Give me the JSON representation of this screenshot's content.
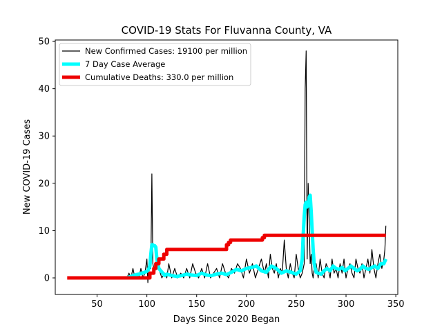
{
  "chart_data": {
    "type": "line",
    "title": "COVID-19 Stats For Fluvanna County, VA",
    "xlabel": "Days Since 2020 Began",
    "ylabel": "New COVID-19 Cases",
    "xlim": [
      8,
      352
    ],
    "ylim": [
      -3.5,
      50.3
    ],
    "xticks": [
      50,
      100,
      150,
      200,
      250,
      300,
      350
    ],
    "yticks": [
      0,
      10,
      20,
      30,
      40,
      50
    ],
    "grid": false,
    "legend_position": "top-left",
    "series": [
      {
        "name": "New Confirmed Cases: 19100 per million",
        "color": "#000000",
        "x": [
          80,
          82,
          84,
          86,
          88,
          90,
          92,
          94,
          96,
          98,
          100,
          101,
          102,
          103,
          104,
          105,
          106,
          108,
          110,
          112,
          115,
          118,
          120,
          122,
          125,
          128,
          131,
          134,
          137,
          140,
          143,
          146,
          149,
          152,
          155,
          158,
          161,
          164,
          167,
          170,
          173,
          176,
          179,
          182,
          185,
          188,
          191,
          194,
          197,
          200,
          203,
          206,
          209,
          212,
          215,
          218,
          220,
          222,
          224,
          226,
          228,
          230,
          232,
          234,
          236,
          238,
          240,
          242,
          244,
          246,
          248,
          250,
          252,
          254,
          256,
          258,
          259,
          260,
          261,
          262,
          263,
          264,
          265,
          266,
          267,
          268,
          270,
          272,
          274,
          276,
          278,
          280,
          282,
          284,
          286,
          288,
          290,
          292,
          294,
          296,
          298,
          300,
          302,
          304,
          306,
          308,
          310,
          312,
          314,
          316,
          318,
          320,
          322,
          324,
          326,
          328,
          330,
          332,
          334,
          336,
          338,
          339,
          340
        ],
        "values": [
          0,
          1,
          0,
          2,
          0,
          1,
          0,
          2,
          0,
          1,
          4,
          -1,
          3,
          5,
          2,
          22,
          3,
          1,
          5,
          2,
          0,
          1,
          0,
          3,
          0,
          2,
          0,
          1,
          0,
          2,
          0,
          3,
          1,
          0,
          2,
          0,
          3,
          0,
          1,
          2,
          0,
          3,
          1,
          0,
          2,
          1,
          3,
          2,
          0,
          4,
          1,
          3,
          0,
          2,
          4,
          1,
          3,
          0,
          5,
          2,
          1,
          3,
          0,
          2,
          1,
          8,
          2,
          0,
          3,
          1,
          0,
          5,
          2,
          0,
          1,
          3,
          40,
          48,
          4,
          20,
          12,
          3,
          5,
          1,
          0,
          2,
          3,
          0,
          4,
          1,
          0,
          3,
          2,
          0,
          4,
          1,
          2,
          0,
          3,
          1,
          4,
          0,
          2,
          3,
          1,
          0,
          4,
          2,
          1,
          3,
          0,
          2,
          4,
          1,
          6,
          2,
          0,
          3,
          5,
          2,
          4,
          6,
          11
        ]
      },
      {
        "name": "7 Day Case Average",
        "color": "#00ffff",
        "x": [
          80,
          86,
          92,
          98,
          101,
          103,
          104,
          105,
          106,
          107,
          108,
          109,
          110,
          112,
          114,
          116,
          118,
          120,
          125,
          130,
          135,
          140,
          145,
          150,
          155,
          160,
          165,
          170,
          175,
          180,
          185,
          190,
          195,
          200,
          205,
          210,
          215,
          220,
          225,
          230,
          235,
          240,
          245,
          250,
          254,
          256,
          257,
          258,
          259,
          260,
          261,
          262,
          263,
          264,
          265,
          266,
          267,
          268,
          269,
          270,
          272,
          275,
          278,
          281,
          284,
          287,
          290,
          293,
          296,
          299,
          302,
          305,
          308,
          311,
          314,
          317,
          320,
          323,
          326,
          329,
          332,
          335,
          338,
          340
        ],
        "values": [
          0,
          0.5,
          0.8,
          1.2,
          1.5,
          2.5,
          5,
          7,
          7,
          6.8,
          6.8,
          6.5,
          4,
          2,
          1.5,
          1,
          0.5,
          0.8,
          0.5,
          0.3,
          0.5,
          0.8,
          0.6,
          0.5,
          1,
          0.6,
          0.5,
          0.8,
          1,
          0.7,
          1.2,
          1.8,
          1.5,
          2,
          2.2,
          2.5,
          1.5,
          1.2,
          2.5,
          2,
          1,
          1.5,
          1.2,
          0.8,
          1.5,
          4,
          9,
          13,
          15.5,
          16,
          15,
          15.5,
          17,
          17.5,
          14,
          10,
          6,
          3,
          2,
          1.2,
          1,
          0.8,
          1.5,
          2,
          1.5,
          2.5,
          2,
          1.8,
          2.2,
          1.5,
          2,
          2.5,
          2,
          1.5,
          1.8,
          2.5,
          2,
          1.8,
          2.2,
          2.5,
          2,
          3,
          3,
          4
        ]
      },
      {
        "name": "Cumulative Deaths: 330.0 per million",
        "color": "#ee0000",
        "x": [
          20,
          100,
          103,
          103,
          107,
          107,
          109,
          109,
          112,
          112,
          117,
          117,
          120,
          120,
          180,
          180,
          182,
          182,
          184,
          184,
          216,
          216,
          218,
          218,
          340
        ],
        "values": [
          0,
          0,
          0,
          1,
          1,
          2,
          2,
          3,
          3,
          4,
          4,
          5,
          5,
          6,
          6,
          7,
          7,
          7.5,
          7.5,
          8,
          8,
          8.5,
          8.5,
          9,
          9
        ]
      }
    ]
  }
}
